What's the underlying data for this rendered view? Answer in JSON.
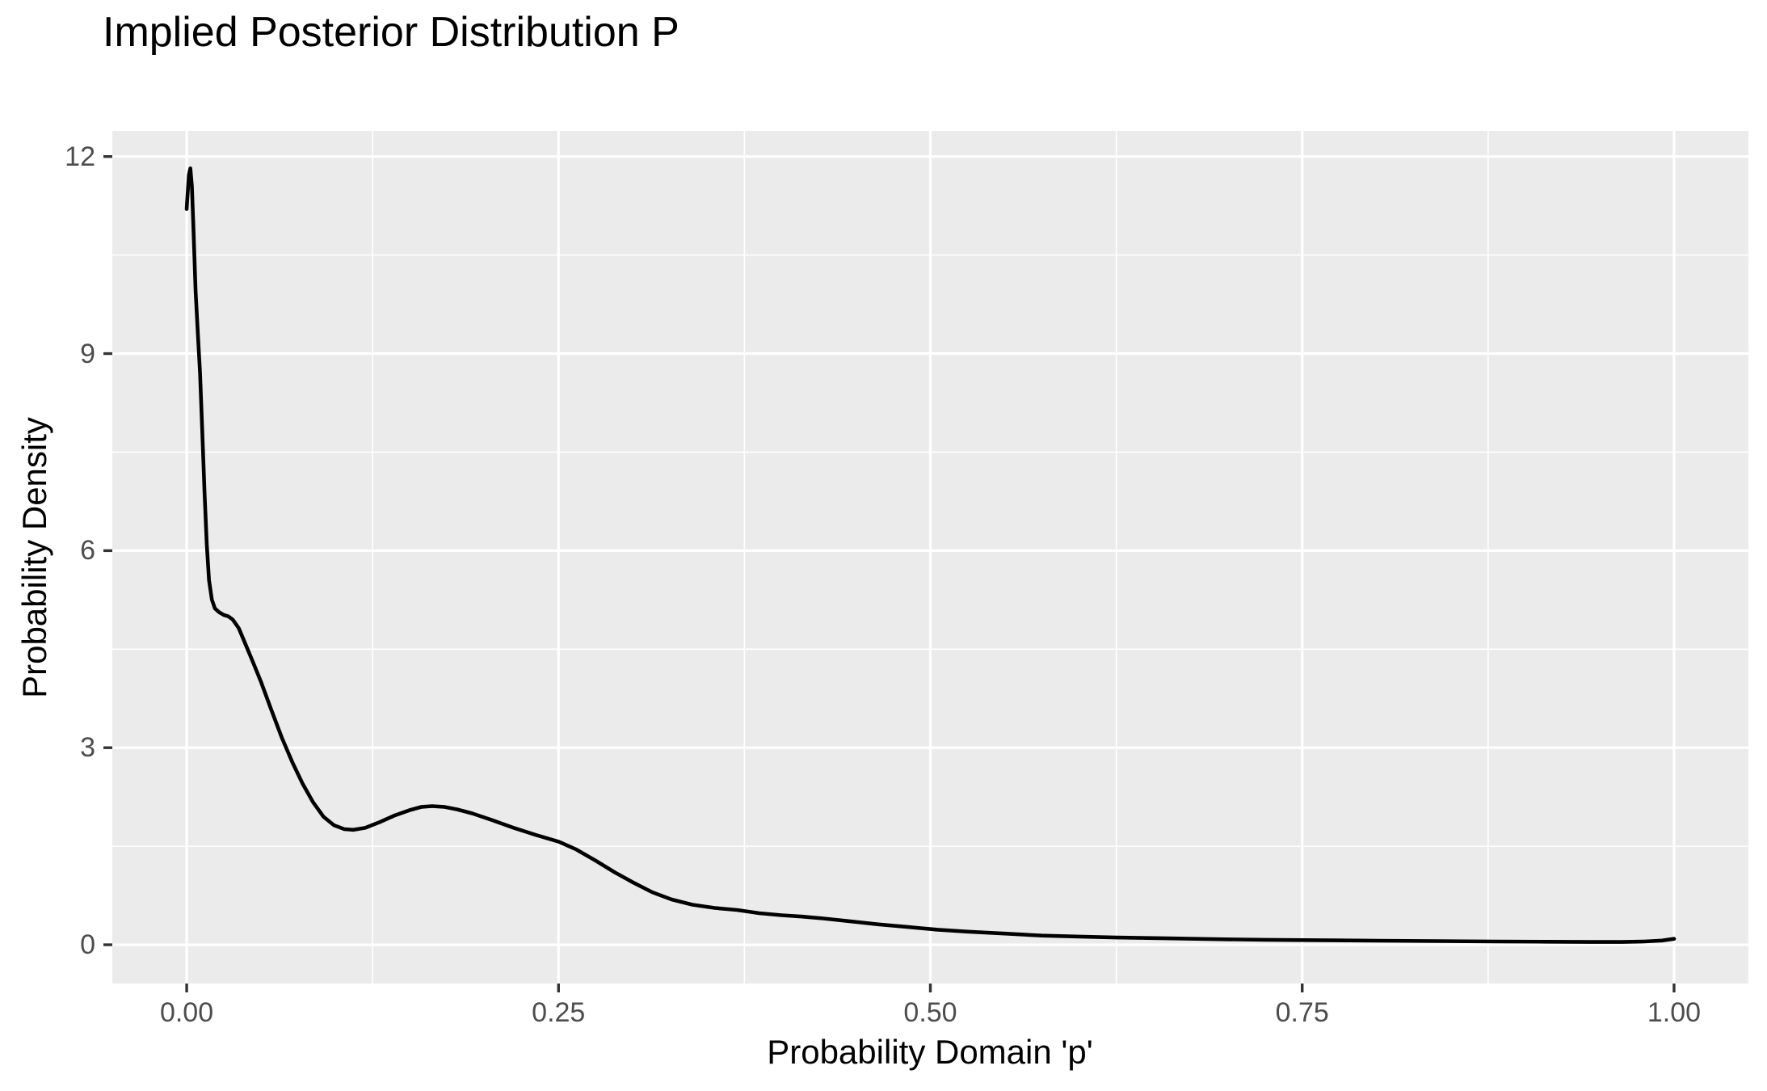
{
  "chart_data": {
    "type": "line",
    "title": "Implied Posterior Distribution P",
    "xlabel": "Probability Domain 'p'",
    "ylabel": "Probability Density",
    "legend": "none",
    "grid": "white major and minor gridlines on gray panel",
    "xlim": [
      -0.05,
      1.05
    ],
    "ylim": [
      -0.59,
      12.39
    ],
    "x_ticks": {
      "values": [
        0,
        0.25,
        0.5,
        0.75,
        1.0
      ],
      "labels": [
        "0.00",
        "0.25",
        "0.50",
        "0.75",
        "1.00"
      ]
    },
    "y_ticks": {
      "values": [
        0,
        3,
        6,
        9,
        12
      ],
      "labels": [
        "0",
        "3",
        "6",
        "9",
        "12"
      ]
    },
    "colors": {
      "background": "#FFFFFF",
      "panel_background": "#EBEBEB",
      "gridline": "#FFFFFF",
      "tick_mark": "#333333",
      "axis_text": "#4D4D4D",
      "title_text": "#000000",
      "curve": "#000000"
    },
    "series": [
      {
        "name": "posterior density curve",
        "color": "#000000",
        "points": [
          [
            0.0,
            11.2
          ],
          [
            0.0015,
            11.72
          ],
          [
            0.0025,
            11.82
          ],
          [
            0.0035,
            11.55
          ],
          [
            0.0045,
            10.95
          ],
          [
            0.006,
            9.95
          ],
          [
            0.0075,
            9.3
          ],
          [
            0.009,
            8.7
          ],
          [
            0.0105,
            7.8
          ],
          [
            0.012,
            6.9
          ],
          [
            0.0135,
            6.1
          ],
          [
            0.015,
            5.55
          ],
          [
            0.017,
            5.25
          ],
          [
            0.019,
            5.12
          ],
          [
            0.022,
            5.06
          ],
          [
            0.025,
            5.02
          ],
          [
            0.028,
            5.0
          ],
          [
            0.031,
            4.95
          ],
          [
            0.035,
            4.82
          ],
          [
            0.04,
            4.55
          ],
          [
            0.045,
            4.28
          ],
          [
            0.05,
            4.0
          ],
          [
            0.057,
            3.57
          ],
          [
            0.064,
            3.15
          ],
          [
            0.071,
            2.78
          ],
          [
            0.078,
            2.45
          ],
          [
            0.085,
            2.17
          ],
          [
            0.092,
            1.95
          ],
          [
            0.099,
            1.82
          ],
          [
            0.106,
            1.76
          ],
          [
            0.112,
            1.75
          ],
          [
            0.12,
            1.78
          ],
          [
            0.13,
            1.87
          ],
          [
            0.14,
            1.97
          ],
          [
            0.15,
            2.05
          ],
          [
            0.158,
            2.1
          ],
          [
            0.165,
            2.11
          ],
          [
            0.173,
            2.1
          ],
          [
            0.182,
            2.06
          ],
          [
            0.192,
            2.0
          ],
          [
            0.205,
            1.9
          ],
          [
            0.22,
            1.78
          ],
          [
            0.235,
            1.67
          ],
          [
            0.25,
            1.57
          ],
          [
            0.262,
            1.45
          ],
          [
            0.275,
            1.28
          ],
          [
            0.288,
            1.1
          ],
          [
            0.3,
            0.95
          ],
          [
            0.313,
            0.8
          ],
          [
            0.326,
            0.69
          ],
          [
            0.34,
            0.61
          ],
          [
            0.355,
            0.56
          ],
          [
            0.37,
            0.53
          ],
          [
            0.385,
            0.48
          ],
          [
            0.4,
            0.45
          ],
          [
            0.413,
            0.43
          ],
          [
            0.428,
            0.4
          ],
          [
            0.445,
            0.36
          ],
          [
            0.465,
            0.31
          ],
          [
            0.485,
            0.27
          ],
          [
            0.505,
            0.23
          ],
          [
            0.525,
            0.2
          ],
          [
            0.55,
            0.17
          ],
          [
            0.575,
            0.14
          ],
          [
            0.6,
            0.125
          ],
          [
            0.625,
            0.11
          ],
          [
            0.655,
            0.1
          ],
          [
            0.69,
            0.085
          ],
          [
            0.725,
            0.075
          ],
          [
            0.76,
            0.07
          ],
          [
            0.8,
            0.062
          ],
          [
            0.84,
            0.056
          ],
          [
            0.88,
            0.05
          ],
          [
            0.915,
            0.046
          ],
          [
            0.945,
            0.043
          ],
          [
            0.965,
            0.043
          ],
          [
            0.98,
            0.05
          ],
          [
            0.992,
            0.065
          ],
          [
            1.0,
            0.09
          ]
        ]
      }
    ]
  }
}
